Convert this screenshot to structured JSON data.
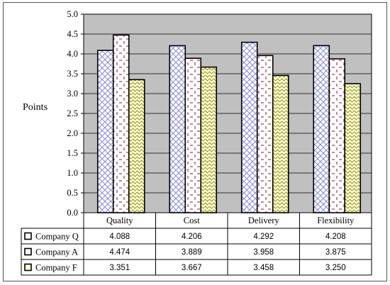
{
  "chart_data": {
    "type": "bar",
    "title": "",
    "xlabel": "",
    "ylabel": "Points",
    "ylim": [
      0,
      5
    ],
    "y_ticks": [
      "0.0",
      "0.5",
      "1.0",
      "1.5",
      "2.0",
      "2.5",
      "3.0",
      "3.5",
      "4.0",
      "4.5",
      "5.0"
    ],
    "grid": true,
    "plot_background": "#c0c0c0",
    "categories": [
      "Quality",
      "Cost",
      "Delivery",
      "Flexibility"
    ],
    "series": [
      {
        "name": "Company Q",
        "values": [
          4.088,
          4.206,
          4.292,
          4.208
        ],
        "labels": [
          "4.088",
          "4.206",
          "4.292",
          "4.208"
        ],
        "pattern": "diamond-lattice",
        "color": "#8888dd",
        "fill": "#ffffff"
      },
      {
        "name": "Company A",
        "values": [
          4.474,
          3.889,
          3.958,
          3.875
        ],
        "labels": [
          "4.474",
          "3.889",
          "3.958",
          "3.875"
        ],
        "pattern": "dotted-diamond",
        "color": "#993355",
        "fill": "#ffffff"
      },
      {
        "name": "Company F",
        "values": [
          3.351,
          3.667,
          3.458,
          3.25
        ],
        "labels": [
          "3.351",
          "3.667",
          "3.458",
          "3.250"
        ],
        "pattern": "wave",
        "color": "#888822",
        "fill": "#ffffcc"
      }
    ],
    "data_table": true,
    "legend_placement": "data-table-left"
  }
}
